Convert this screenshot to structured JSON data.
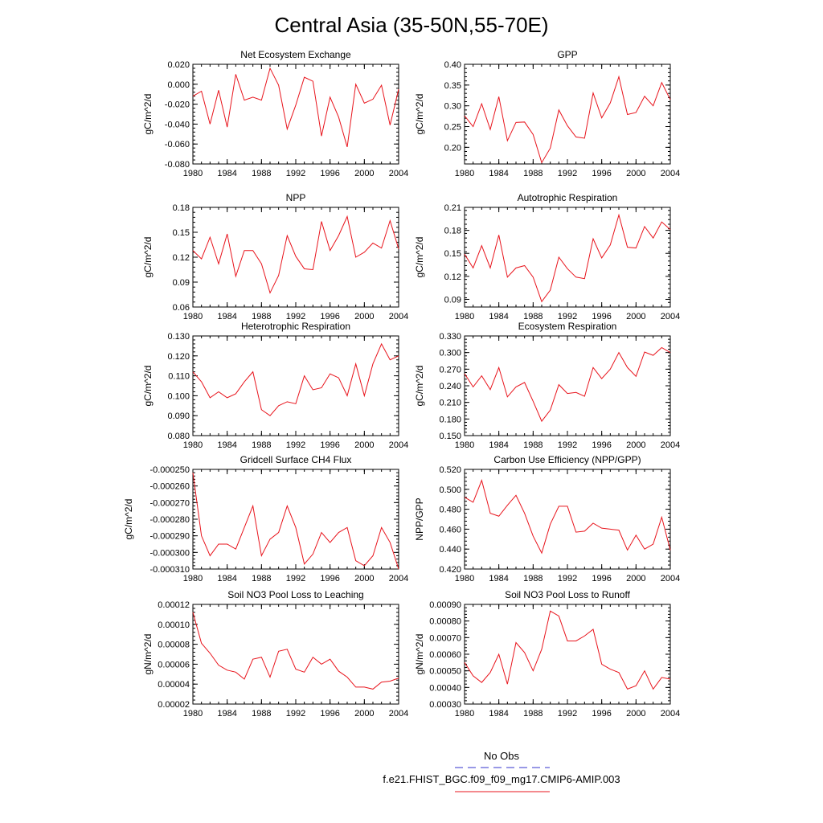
{
  "figure": {
    "title": "Central Asia (35-50N,55-70E)"
  },
  "legend": {
    "entries": [
      {
        "label": "No Obs",
        "color": "#3333cc",
        "style": "dashed"
      },
      {
        "label": "f.e21.FHIST_BGC.f09_f09_mg17.CMIP6-AMIP.003",
        "color": "#e8141c",
        "style": "solid"
      }
    ]
  },
  "colors": {
    "series": "#e8141c",
    "frame": "#000000"
  },
  "chart_data": [
    {
      "type": "line",
      "title": "Net Ecosystem Exchange",
      "ylabel": "gC/m^2/d",
      "xlabel": "",
      "xlim": [
        1980,
        2004
      ],
      "ylim": [
        -0.08,
        0.02
      ],
      "xticks": [
        1980,
        1984,
        1988,
        1992,
        1996,
        2000,
        2004
      ],
      "xtick_labels": [
        "1980",
        "1984",
        "1988",
        "1992",
        "1996",
        "2000",
        "2004"
      ],
      "yticks": [
        -0.08,
        -0.06,
        -0.04,
        -0.02,
        0.0,
        0.02
      ],
      "ytick_labels": [
        "-0.080",
        "-0.060",
        "-0.040",
        "-0.020",
        "0.000",
        "0.020"
      ],
      "series": [
        {
          "color": "#e8141c",
          "x": [
            1980,
            1981,
            1982,
            1983,
            1984,
            1985,
            1986,
            1987,
            1988,
            1989,
            1990,
            1991,
            1992,
            1993,
            1994,
            1995,
            1996,
            1997,
            1998,
            1999,
            2000,
            2001,
            2002,
            2003,
            2004
          ],
          "values": [
            -0.012,
            -0.007,
            -0.04,
            -0.006,
            -0.043,
            0.01,
            -0.016,
            -0.013,
            -0.016,
            0.016,
            -0.001,
            -0.045,
            -0.021,
            0.007,
            0.003,
            -0.052,
            -0.013,
            -0.033,
            -0.063,
            0.0,
            -0.019,
            -0.015,
            -0.001,
            -0.041,
            -0.005
          ]
        }
      ]
    },
    {
      "type": "line",
      "title": "GPP",
      "ylabel": "gC/m^2/d",
      "xlabel": "",
      "xlim": [
        1980,
        2004
      ],
      "ylim": [
        0.16,
        0.4
      ],
      "xticks": [
        1980,
        1984,
        1988,
        1992,
        1996,
        2000,
        2004
      ],
      "xtick_labels": [
        "1980",
        "1984",
        "1988",
        "1992",
        "1996",
        "2000",
        "2004"
      ],
      "yticks": [
        0.2,
        0.25,
        0.3,
        0.35,
        0.4
      ],
      "ytick_labels": [
        "0.20",
        "0.25",
        "0.30",
        "0.35",
        "0.40"
      ],
      "series": [
        {
          "color": "#e8141c",
          "x": [
            1980,
            1981,
            1982,
            1983,
            1984,
            1985,
            1986,
            1987,
            1988,
            1989,
            1990,
            1991,
            1992,
            1993,
            1994,
            1995,
            1996,
            1997,
            1998,
            1999,
            2000,
            2001,
            2002,
            2003,
            2004
          ],
          "values": [
            0.276,
            0.25,
            0.305,
            0.243,
            0.322,
            0.216,
            0.26,
            0.261,
            0.231,
            0.163,
            0.198,
            0.29,
            0.252,
            0.225,
            0.222,
            0.331,
            0.271,
            0.307,
            0.37,
            0.279,
            0.284,
            0.323,
            0.3,
            0.356,
            0.315
          ]
        }
      ]
    },
    {
      "type": "line",
      "title": "NPP",
      "ylabel": "gC/m^2/d",
      "xlabel": "",
      "xlim": [
        1980,
        2004
      ],
      "ylim": [
        0.06,
        0.18
      ],
      "xticks": [
        1980,
        1984,
        1988,
        1992,
        1996,
        2000,
        2004
      ],
      "xtick_labels": [
        "1980",
        "1984",
        "1988",
        "1992",
        "1996",
        "2000",
        "2004"
      ],
      "yticks": [
        0.06,
        0.09,
        0.12,
        0.15,
        0.18
      ],
      "ytick_labels": [
        "0.06",
        "0.09",
        "0.12",
        "0.15",
        "0.18"
      ],
      "series": [
        {
          "color": "#e8141c",
          "x": [
            1980,
            1981,
            1982,
            1983,
            1984,
            1985,
            1986,
            1987,
            1988,
            1989,
            1990,
            1991,
            1992,
            1993,
            1994,
            1995,
            1996,
            1997,
            1998,
            1999,
            2000,
            2001,
            2002,
            2003,
            2004
          ],
          "values": [
            0.128,
            0.118,
            0.144,
            0.112,
            0.148,
            0.097,
            0.128,
            0.128,
            0.112,
            0.077,
            0.098,
            0.146,
            0.121,
            0.106,
            0.105,
            0.163,
            0.128,
            0.146,
            0.169,
            0.12,
            0.126,
            0.137,
            0.131,
            0.164,
            0.13
          ]
        }
      ]
    },
    {
      "type": "line",
      "title": "Autotrophic Respiration",
      "ylabel": "gC/m^2/d",
      "xlabel": "",
      "xlim": [
        1980,
        2004
      ],
      "ylim": [
        0.08,
        0.21
      ],
      "xticks": [
        1980,
        1984,
        1988,
        1992,
        1996,
        2000,
        2004
      ],
      "xtick_labels": [
        "1980",
        "1984",
        "1988",
        "1992",
        "1996",
        "2000",
        "2004"
      ],
      "yticks": [
        0.09,
        0.12,
        0.15,
        0.18,
        0.21
      ],
      "ytick_labels": [
        "0.09",
        "0.12",
        "0.15",
        "0.18",
        "0.21"
      ],
      "series": [
        {
          "color": "#e8141c",
          "x": [
            1980,
            1981,
            1982,
            1983,
            1984,
            1985,
            1986,
            1987,
            1988,
            1989,
            1990,
            1991,
            1992,
            1993,
            1994,
            1995,
            1996,
            1997,
            1998,
            1999,
            2000,
            2001,
            2002,
            2003,
            2004
          ],
          "values": [
            0.149,
            0.131,
            0.16,
            0.131,
            0.174,
            0.119,
            0.131,
            0.134,
            0.119,
            0.087,
            0.102,
            0.145,
            0.13,
            0.119,
            0.117,
            0.169,
            0.144,
            0.161,
            0.2,
            0.158,
            0.157,
            0.185,
            0.17,
            0.191,
            0.181
          ]
        }
      ]
    },
    {
      "type": "line",
      "title": "Heterotrophic Respiration",
      "ylabel": "gC/m^2/d",
      "xlabel": "",
      "xlim": [
        1980,
        2004
      ],
      "ylim": [
        0.08,
        0.13
      ],
      "xticks": [
        1980,
        1984,
        1988,
        1992,
        1996,
        2000,
        2004
      ],
      "xtick_labels": [
        "1980",
        "1984",
        "1988",
        "1992",
        "1996",
        "2000",
        "2004"
      ],
      "yticks": [
        0.08,
        0.09,
        0.1,
        0.11,
        0.12,
        0.13
      ],
      "ytick_labels": [
        "0.080",
        "0.090",
        "0.100",
        "0.110",
        "0.120",
        "0.130"
      ],
      "series": [
        {
          "color": "#e8141c",
          "x": [
            1980,
            1981,
            1982,
            1983,
            1984,
            1985,
            1986,
            1987,
            1988,
            1989,
            1990,
            1991,
            1992,
            1993,
            1994,
            1995,
            1996,
            1997,
            1998,
            1999,
            2000,
            2001,
            2002,
            2003,
            2004
          ],
          "values": [
            0.112,
            0.107,
            0.099,
            0.102,
            0.099,
            0.101,
            0.107,
            0.112,
            0.093,
            0.09,
            0.095,
            0.097,
            0.096,
            0.11,
            0.103,
            0.104,
            0.111,
            0.109,
            0.1,
            0.116,
            0.1,
            0.116,
            0.126,
            0.118,
            0.12
          ]
        }
      ]
    },
    {
      "type": "line",
      "title": "Ecosystem Respiration",
      "ylabel": "gC/m^2/d",
      "xlabel": "",
      "xlim": [
        1980,
        2004
      ],
      "ylim": [
        0.15,
        0.33
      ],
      "xticks": [
        1980,
        1984,
        1988,
        1992,
        1996,
        2000,
        2004
      ],
      "xtick_labels": [
        "1980",
        "1984",
        "1988",
        "1992",
        "1996",
        "2000",
        "2004"
      ],
      "yticks": [
        0.15,
        0.18,
        0.21,
        0.24,
        0.27,
        0.3,
        0.33
      ],
      "ytick_labels": [
        "0.150",
        "0.180",
        "0.210",
        "0.240",
        "0.270",
        "0.300",
        "0.330"
      ],
      "series": [
        {
          "color": "#e8141c",
          "x": [
            1980,
            1981,
            1982,
            1983,
            1984,
            1985,
            1986,
            1987,
            1988,
            1989,
            1990,
            1991,
            1992,
            1993,
            1994,
            1995,
            1996,
            1997,
            1998,
            1999,
            2000,
            2001,
            2002,
            2003,
            2004
          ],
          "values": [
            0.262,
            0.238,
            0.258,
            0.233,
            0.273,
            0.22,
            0.238,
            0.246,
            0.212,
            0.176,
            0.196,
            0.242,
            0.226,
            0.228,
            0.221,
            0.273,
            0.253,
            0.27,
            0.3,
            0.273,
            0.257,
            0.301,
            0.295,
            0.309,
            0.3
          ]
        }
      ]
    },
    {
      "type": "line",
      "title": "Gridcell Surface CH4 Flux",
      "ylabel": "gC/m^2/d",
      "xlabel": "",
      "xlim": [
        1980,
        2004
      ],
      "ylim": [
        -0.00031,
        -0.00025
      ],
      "xticks": [
        1980,
        1984,
        1988,
        1992,
        1996,
        2000,
        2004
      ],
      "xtick_labels": [
        "1980",
        "1984",
        "1988",
        "1992",
        "1996",
        "2000",
        "2004"
      ],
      "yticks": [
        -0.00031,
        -0.0003,
        -0.00029,
        -0.00028,
        -0.00027,
        -0.00026,
        -0.00025
      ],
      "ytick_labels": [
        "-0.000310",
        "-0.000300",
        "-0.000290",
        "-0.000280",
        "-0.000270",
        "-0.000260",
        "-0.000250"
      ],
      "series": [
        {
          "color": "#e8141c",
          "x": [
            1980,
            1981,
            1982,
            1983,
            1984,
            1985,
            1986,
            1987,
            1988,
            1989,
            1990,
            1991,
            1992,
            1993,
            1994,
            1995,
            1996,
            1997,
            1998,
            1999,
            2000,
            2001,
            2002,
            2003,
            2004
          ],
          "values": [
            -0.000252,
            -0.00029,
            -0.000302,
            -0.000295,
            -0.000295,
            -0.000298,
            -0.000285,
            -0.000272,
            -0.000302,
            -0.000292,
            -0.000288,
            -0.000272,
            -0.000285,
            -0.000307,
            -0.000301,
            -0.000288,
            -0.000294,
            -0.000288,
            -0.000285,
            -0.000305,
            -0.000308,
            -0.000302,
            -0.000285,
            -0.000294,
            -0.00031
          ]
        }
      ]
    },
    {
      "type": "line",
      "title": "Carbon Use Efficiency (NPP/GPP)",
      "ylabel": "NPP/GPP",
      "xlabel": "",
      "xlim": [
        1980,
        2004
      ],
      "ylim": [
        0.42,
        0.52
      ],
      "xticks": [
        1980,
        1984,
        1988,
        1992,
        1996,
        2000,
        2004
      ],
      "xtick_labels": [
        "1980",
        "1984",
        "1988",
        "1992",
        "1996",
        "2000",
        "2004"
      ],
      "yticks": [
        0.42,
        0.44,
        0.46,
        0.48,
        0.5,
        0.52
      ],
      "ytick_labels": [
        "0.420",
        "0.440",
        "0.460",
        "0.480",
        "0.500",
        "0.520"
      ],
      "series": [
        {
          "color": "#e8141c",
          "x": [
            1980,
            1981,
            1982,
            1983,
            1984,
            1985,
            1986,
            1987,
            1988,
            1989,
            1990,
            1991,
            1992,
            1993,
            1994,
            1995,
            1996,
            1997,
            1998,
            1999,
            2000,
            2001,
            2002,
            2003,
            2004
          ],
          "values": [
            0.492,
            0.487,
            0.509,
            0.476,
            0.473,
            0.484,
            0.494,
            0.476,
            0.453,
            0.436,
            0.465,
            0.483,
            0.483,
            0.457,
            0.458,
            0.466,
            0.461,
            0.46,
            0.459,
            0.439,
            0.454,
            0.44,
            0.445,
            0.472,
            0.439
          ]
        }
      ]
    },
    {
      "type": "line",
      "title": "Soil NO3 Pool Loss to Leaching",
      "ylabel": "gN/m^2/d",
      "xlabel": "",
      "xlim": [
        1980,
        2004
      ],
      "ylim": [
        2e-05,
        0.00012
      ],
      "xticks": [
        1980,
        1984,
        1988,
        1992,
        1996,
        2000,
        2004
      ],
      "xtick_labels": [
        "1980",
        "1984",
        "1988",
        "1992",
        "1996",
        "2000",
        "2004"
      ],
      "yticks": [
        2e-05,
        4e-05,
        6e-05,
        8e-05,
        0.0001,
        0.00012
      ],
      "ytick_labels": [
        "0.00002",
        "0.00004",
        "0.00006",
        "0.00008",
        "0.00010",
        "0.00012"
      ],
      "series": [
        {
          "color": "#e8141c",
          "x": [
            1980,
            1981,
            1982,
            1983,
            1984,
            1985,
            1986,
            1987,
            1988,
            1989,
            1990,
            1991,
            1992,
            1993,
            1994,
            1995,
            1996,
            1997,
            1998,
            1999,
            2000,
            2001,
            2002,
            2003,
            2004
          ],
          "values": [
            0.000112,
            8.1e-05,
            7.1e-05,
            5.9e-05,
            5.4e-05,
            5.2e-05,
            4.5e-05,
            6.5e-05,
            6.7e-05,
            4.7e-05,
            7.3e-05,
            7.5e-05,
            5.5e-05,
            5.2e-05,
            6.7e-05,
            6e-05,
            6.5e-05,
            5.3e-05,
            4.7e-05,
            3.7e-05,
            3.7e-05,
            3.5e-05,
            4.2e-05,
            4.3e-05,
            4.6e-05
          ]
        }
      ]
    },
    {
      "type": "line",
      "title": "Soil NO3 Pool Loss to Runoff",
      "ylabel": "gN/m^2/d",
      "xlabel": "",
      "xlim": [
        1980,
        2004
      ],
      "ylim": [
        0.0003,
        0.0009
      ],
      "xticks": [
        1980,
        1984,
        1988,
        1992,
        1996,
        2000,
        2004
      ],
      "xtick_labels": [
        "1980",
        "1984",
        "1988",
        "1992",
        "1996",
        "2000",
        "2004"
      ],
      "yticks": [
        0.0003,
        0.0004,
        0.0005,
        0.0006,
        0.0007,
        0.0008,
        0.0009
      ],
      "ytick_labels": [
        "0.00030",
        "0.00040",
        "0.00050",
        "0.00060",
        "0.00070",
        "0.00080",
        "0.00090"
      ],
      "series": [
        {
          "color": "#e8141c",
          "x": [
            1980,
            1981,
            1982,
            1983,
            1984,
            1985,
            1986,
            1987,
            1988,
            1989,
            1990,
            1991,
            1992,
            1993,
            1994,
            1995,
            1996,
            1997,
            1998,
            1999,
            2000,
            2001,
            2002,
            2003,
            2004
          ],
          "values": [
            0.00055,
            0.00047,
            0.00043,
            0.00049,
            0.0006,
            0.00042,
            0.00067,
            0.00061,
            0.0005,
            0.00063,
            0.00086,
            0.00083,
            0.00068,
            0.00068,
            0.00071,
            0.00075,
            0.00054,
            0.00051,
            0.00049,
            0.00039,
            0.00041,
            0.0005,
            0.00039,
            0.00046,
            0.00045
          ]
        }
      ]
    }
  ]
}
